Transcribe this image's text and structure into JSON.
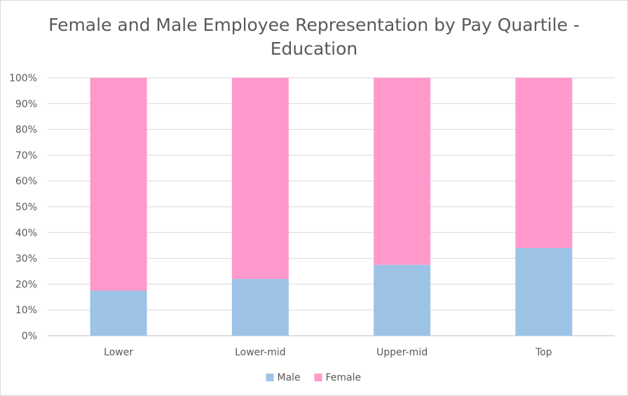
{
  "chart_data": {
    "type": "bar",
    "stacked": true,
    "title_lines": [
      "Female and Male Employee Representation by Pay Quartile -",
      "Education"
    ],
    "categories": [
      "Lower",
      "Lower-mid",
      "Upper-mid",
      "Top"
    ],
    "series": [
      {
        "name": "Male",
        "color": "#9dc3e6",
        "values": [
          17.5,
          22,
          27.5,
          34
        ]
      },
      {
        "name": "Female",
        "color": "#ff99cc",
        "values": [
          82.5,
          78,
          72.5,
          66
        ]
      }
    ],
    "ylim": [
      0,
      100
    ],
    "y_ticks": [
      "0%",
      "10%",
      "20%",
      "30%",
      "40%",
      "50%",
      "60%",
      "70%",
      "80%",
      "90%",
      "100%"
    ],
    "gridlines": true,
    "legend": "bottom"
  }
}
